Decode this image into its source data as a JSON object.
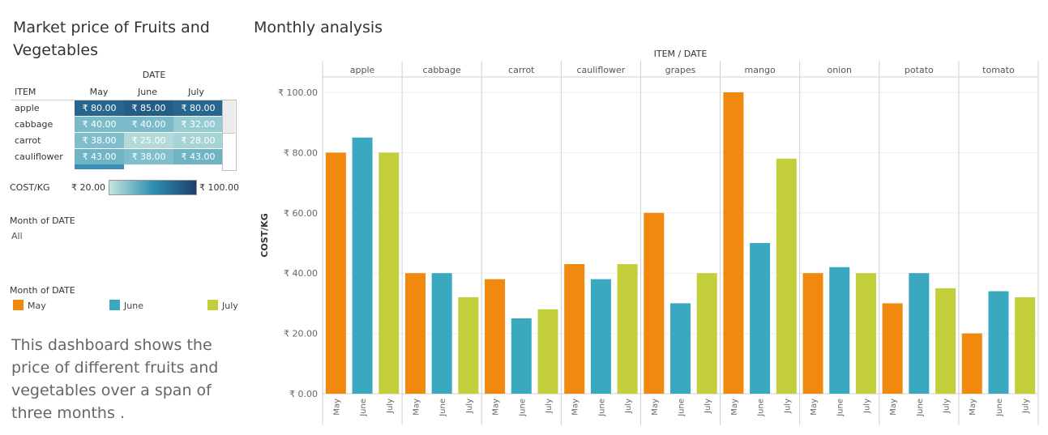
{
  "left_title": "Market price  of Fruits and Vegetables",
  "right_title": "Monthly analysis",
  "heat_table": {
    "date_header": "DATE",
    "item_header": "ITEM",
    "months": [
      "May",
      "June",
      "July"
    ],
    "rows": [
      {
        "item": "apple",
        "values": [
          "₹ 80.00",
          "₹ 85.00",
          "₹ 80.00"
        ],
        "nums": [
          80,
          85,
          80
        ]
      },
      {
        "item": "cabbage",
        "values": [
          "₹ 40.00",
          "₹ 40.00",
          "₹ 32.00"
        ],
        "nums": [
          40,
          40,
          32
        ]
      },
      {
        "item": "carrot",
        "values": [
          "₹ 38.00",
          "₹ 25.00",
          "₹ 28.00"
        ],
        "nums": [
          38,
          25,
          28
        ]
      },
      {
        "item": "cauliflower",
        "values": [
          "₹ 43.00",
          "₹ 38.00",
          "₹ 43.00"
        ],
        "nums": [
          43,
          38,
          43
        ]
      }
    ]
  },
  "color_legend": {
    "label": "COST/KG",
    "min": "₹ 20.00",
    "max": "₹ 100.00"
  },
  "filter": {
    "title": "Month of DATE",
    "value": "All"
  },
  "month_legend": {
    "title": "Month of DATE",
    "items": [
      {
        "label": "May",
        "color": "#f0890e"
      },
      {
        "label": "June",
        "color": "#3aa9bf"
      },
      {
        "label": "July",
        "color": "#c2cf3b"
      }
    ]
  },
  "description": "This dashboard shows the price of different fruits and vegetables over a span of three months .",
  "chart_data": {
    "type": "bar",
    "title": "Monthly analysis",
    "header": "ITEM / DATE",
    "ylabel": "COST/KG",
    "ylim": [
      0,
      100
    ],
    "yticks": [
      "₹ 0.00",
      "₹ 20.00",
      "₹ 40.00",
      "₹ 60.00",
      "₹ 80.00",
      "₹ 100.00"
    ],
    "ytick_values": [
      0,
      20,
      40,
      60,
      80,
      100
    ],
    "categories": [
      "apple",
      "cabbage",
      "carrot",
      "cauliflower",
      "grapes",
      "mango",
      "onion",
      "potato",
      "tomato"
    ],
    "months": [
      "May",
      "June",
      "July"
    ],
    "series": [
      {
        "name": "May",
        "color": "#f0890e",
        "values": [
          80,
          40,
          38,
          43,
          60,
          100,
          40,
          30,
          20
        ]
      },
      {
        "name": "June",
        "color": "#3aa9bf",
        "values": [
          85,
          40,
          25,
          38,
          30,
          50,
          42,
          40,
          34
        ]
      },
      {
        "name": "July",
        "color": "#c2cf3b",
        "values": [
          80,
          32,
          28,
          43,
          40,
          78,
          40,
          35,
          32
        ]
      }
    ],
    "grid": true,
    "legend": "left"
  }
}
